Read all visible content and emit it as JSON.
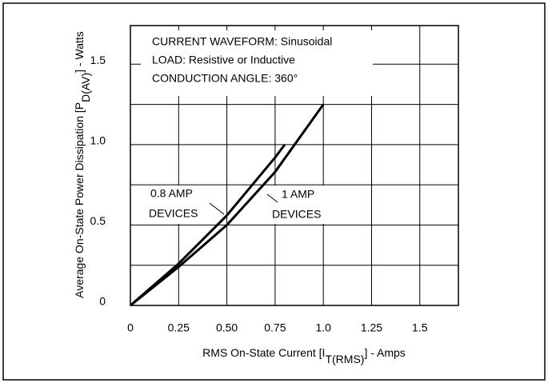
{
  "chart_data": {
    "type": "line",
    "x_label": {
      "text": "RMS On-State Current [I",
      "sub": "T(RMS)",
      "tail": "] - Amps"
    },
    "y_label": {
      "text": "Average On-State Power Dissipation [P",
      "sub": "D(AV)",
      "tail": "] - Watts"
    },
    "annotations": {
      "box": [
        "CURRENT WAVEFORM: Sinusoidal",
        "LOAD: Resistive or Inductive",
        "CONDUCTION ANGLE: 360°"
      ],
      "series_0": [
        "0.8 AMP",
        "DEVICES"
      ],
      "series_1": [
        "1 AMP",
        "DEVICES"
      ]
    },
    "series": [
      {
        "color": "#000000",
        "x": [
          0,
          0.25,
          0.5,
          0.75,
          0.8
        ],
        "values": [
          0,
          0.26,
          0.56,
          0.92,
          1.0
        ]
      },
      {
        "color": "#000000",
        "x": [
          0,
          0.25,
          0.5,
          0.75,
          1.0
        ],
        "values": [
          0,
          0.24,
          0.5,
          0.83,
          1.25
        ]
      }
    ],
    "xlim": [
      0,
      1.7
    ],
    "ylim": [
      0,
      1.74
    ],
    "xticks": [
      0,
      0.25,
      {
        "value": 0.5,
        "label": "0.50"
      },
      0.75,
      {
        "value": 1,
        "label": "1.0"
      },
      1.25,
      1.5
    ],
    "yticks": [
      0,
      0.5,
      {
        "value": 1,
        "label": "1.0"
      },
      1.5
    ],
    "yminor": [
      0.25,
      0.75,
      1.25
    ],
    "grid": true
  }
}
